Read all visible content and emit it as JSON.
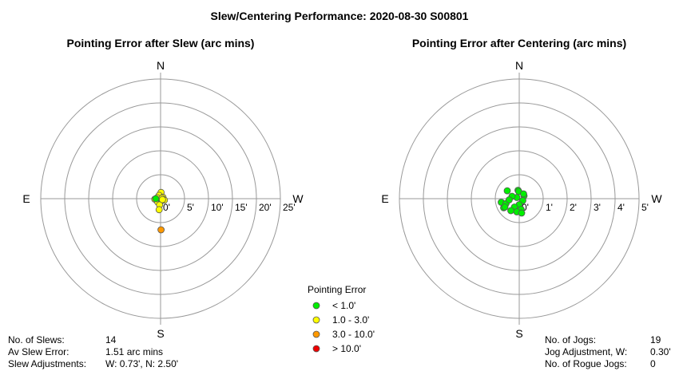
{
  "title": "Slew/Centering Performance: 2020-08-30 S00801",
  "chart_data": [
    {
      "type": "scatter",
      "coordinate_system": "polar",
      "title": "Pointing Error after Slew (arc mins)",
      "compass": {
        "north": "N",
        "south": "S",
        "east": "E",
        "west": "W"
      },
      "ring_labels": [
        "0'",
        "5'",
        "10'",
        "15'",
        "20'",
        "25'"
      ],
      "ring_values": [
        5,
        10,
        15,
        20,
        25
      ],
      "rlim": [
        0,
        25
      ],
      "grid": true,
      "points": [
        {
          "ew": 0.1,
          "ns": 1.3,
          "color": "#ffff00"
        },
        {
          "ew": -0.3,
          "ns": 0.7,
          "color": "#ffff00"
        },
        {
          "ew": -0.7,
          "ns": 0.2,
          "color": "#ffff00"
        },
        {
          "ew": 0.5,
          "ns": 0.3,
          "color": "#ffff00"
        },
        {
          "ew": -1.2,
          "ns": -0.1,
          "color": "#ffff00"
        },
        {
          "ew": 0.8,
          "ns": -0.3,
          "color": "#ffff00"
        },
        {
          "ew": -0.6,
          "ns": -0.7,
          "color": "#ffff00"
        },
        {
          "ew": 0.2,
          "ns": -0.4,
          "color": "#00ee00"
        },
        {
          "ew": 0.3,
          "ns": 0.1,
          "color": "#ffff00"
        },
        {
          "ew": -0.2,
          "ns": -1.3,
          "color": "#ffff00"
        },
        {
          "ew": -0.3,
          "ns": -2.3,
          "color": "#ffff00"
        },
        {
          "ew": -1.0,
          "ns": 0.0,
          "color": "#00ee00"
        },
        {
          "ew": 0.4,
          "ns": -0.2,
          "color": "#ffff00"
        },
        {
          "ew": 0.1,
          "ns": -6.5,
          "color": "#ff9900"
        }
      ]
    },
    {
      "type": "scatter",
      "coordinate_system": "polar",
      "title": "Pointing Error after Centering (arc mins)",
      "compass": {
        "north": "N",
        "south": "S",
        "east": "E",
        "west": "W"
      },
      "ring_labels": [
        "0'",
        "1'",
        "2'",
        "3'",
        "4'",
        "5'"
      ],
      "ring_values": [
        1,
        2,
        3,
        4,
        5
      ],
      "rlim": [
        0,
        5
      ],
      "grid": true,
      "points": [
        {
          "ew": -0.05,
          "ns": 0.35,
          "color": "#00ee00"
        },
        {
          "ew": -0.5,
          "ns": 0.33,
          "color": "#00ee00"
        },
        {
          "ew": 0.2,
          "ns": 0.12,
          "color": "#00ee00"
        },
        {
          "ew": -0.1,
          "ns": 0.05,
          "color": "#00ee00"
        },
        {
          "ew": -0.3,
          "ns": 0.1,
          "color": "#00ee00"
        },
        {
          "ew": 0.15,
          "ns": -0.08,
          "color": "#00ee00"
        },
        {
          "ew": -0.75,
          "ns": -0.15,
          "color": "#00ee00"
        },
        {
          "ew": -0.55,
          "ns": -0.2,
          "color": "#00ee00"
        },
        {
          "ew": -0.42,
          "ns": -0.05,
          "color": "#00ee00"
        },
        {
          "ew": 0.0,
          "ns": -0.25,
          "color": "#00ee00"
        },
        {
          "ew": -0.65,
          "ns": -0.38,
          "color": "#00ee00"
        },
        {
          "ew": -0.2,
          "ns": -0.35,
          "color": "#00ee00"
        },
        {
          "ew": 0.08,
          "ns": -0.45,
          "color": "#00ee00"
        },
        {
          "ew": -0.35,
          "ns": -0.5,
          "color": "#00ee00"
        },
        {
          "ew": -0.1,
          "ns": -0.55,
          "color": "#00ee00"
        },
        {
          "ew": -0.02,
          "ns": 0.3,
          "color": "#00ee00"
        },
        {
          "ew": 0.1,
          "ns": -0.6,
          "color": "#00ee00"
        },
        {
          "ew": -0.6,
          "ns": -0.35,
          "color": "#00ee00"
        },
        {
          "ew": 0.18,
          "ns": 0.2,
          "color": "#00ee00"
        }
      ]
    }
  ],
  "legend": {
    "title": "Pointing Error",
    "items": [
      {
        "label": "< 1.0'",
        "color": "#00ee00"
      },
      {
        "label": "1.0 - 3.0'",
        "color": "#ffff00"
      },
      {
        "label": "3.0 - 10.0'",
        "color": "#ff9900"
      },
      {
        "label": "> 10.0'",
        "color": "#ee0000"
      }
    ]
  },
  "slew_stats": [
    {
      "label": "No. of Slews:",
      "value": "14"
    },
    {
      "label": "Av Slew Error:",
      "value": "1.51 arc mins"
    },
    {
      "label": "Slew Adjustments:",
      "value": "W: 0.73', N: 2.50'"
    }
  ],
  "centering_stats": [
    {
      "label": "No. of Jogs:",
      "value": "19"
    },
    {
      "label": "Jog Adjustment, W:",
      "value": "0.30'"
    },
    {
      "label": "No. of Rogue Jogs:",
      "value": "0"
    }
  ]
}
